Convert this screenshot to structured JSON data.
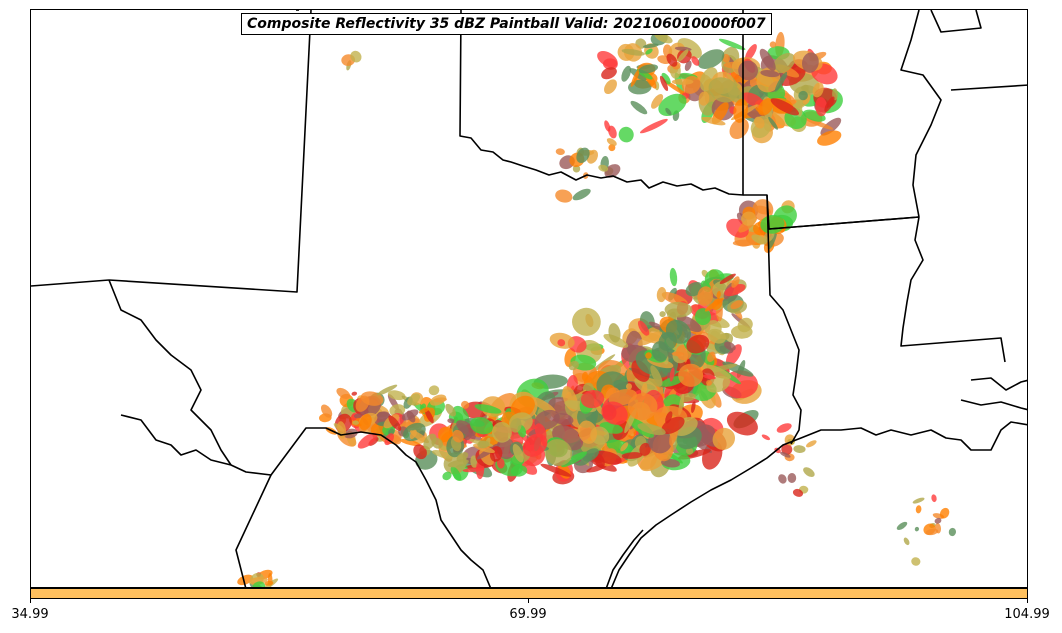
{
  "title": "Composite Reflectivity 35 dBZ Paintball Valid: 202106010000f007",
  "colorbar": {
    "color": "#ffc05e",
    "ticks": [
      "34.99",
      "69.99",
      "104.99"
    ]
  },
  "member_colors": [
    "#ff3b3b",
    "#d9261c",
    "#9b5a5a",
    "#3fcf3f",
    "#5a8f5a",
    "#b0a84a",
    "#f58a2a",
    "#ff7f00",
    "#e9a33a",
    "#c2b14d"
  ],
  "map": {
    "region": "Southern Plains (Texas, Oklahoma, Louisiana)",
    "features": [
      "state-borders",
      "coastline",
      "mexico-border"
    ]
  }
}
